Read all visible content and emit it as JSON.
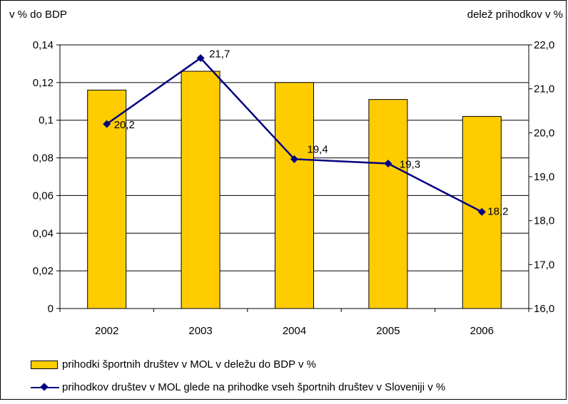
{
  "chart_data": {
    "type": "bar",
    "categories": [
      "2002",
      "2003",
      "2004",
      "2005",
      "2006"
    ],
    "left_axis_label": "v % do BDP",
    "right_axis_label": "delež prihodkov v %",
    "left_ylim": [
      0,
      0.14
    ],
    "left_ticks": [
      "0",
      "0,02",
      "0,04",
      "0,06",
      "0,08",
      "0,1",
      "0,12",
      "0,14"
    ],
    "right_ylim": [
      16.0,
      22.0
    ],
    "right_ticks": [
      "16,0",
      "17,0",
      "18,0",
      "19,0",
      "20,0",
      "21,0",
      "22,0"
    ],
    "series": [
      {
        "name": "prihodki športnih društev v MOL v deležu do BDP v %",
        "type": "bar",
        "axis": "left",
        "color": "#FFCC00",
        "values": [
          0.116,
          0.126,
          0.12,
          0.111,
          0.102
        ]
      },
      {
        "name": "prihodkov društev v MOL glede na prihodke vseh športnih društev v Sloveniji v %",
        "type": "line",
        "axis": "right",
        "color": "#000080",
        "values": [
          20.2,
          21.7,
          19.4,
          19.3,
          18.2
        ],
        "labels": [
          "20,2",
          "21,7",
          "19,4",
          "19,3",
          "18,2"
        ]
      }
    ],
    "grid": "horizontal (left axis)",
    "legend_position": "bottom"
  }
}
